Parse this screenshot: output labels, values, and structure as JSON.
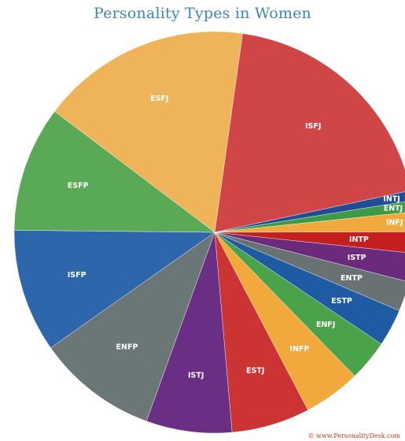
{
  "chart_data": {
    "type": "pie",
    "title": "Personality Types in Women",
    "slices": [
      {
        "label": "ISFJ",
        "value": 19.4,
        "color": "#d04646"
      },
      {
        "label": "INTJ",
        "value": 0.8,
        "color": "#1f4e96"
      },
      {
        "label": "ENTJ",
        "value": 0.9,
        "color": "#3f9a47"
      },
      {
        "label": "INFJ",
        "value": 1.6,
        "color": "#f2a93b"
      },
      {
        "label": "INTP",
        "value": 1.7,
        "color": "#c41e1e"
      },
      {
        "label": "ISTP",
        "value": 2.3,
        "color": "#6b2a7c"
      },
      {
        "label": "ENTP",
        "value": 2.4,
        "color": "#687272"
      },
      {
        "label": "ESTP",
        "value": 3.0,
        "color": "#1f5ba3"
      },
      {
        "label": "ENFJ",
        "value": 3.3,
        "color": "#4aa24a"
      },
      {
        "label": "INFP",
        "value": 4.6,
        "color": "#f0a93a"
      },
      {
        "label": "ESTJ",
        "value": 6.3,
        "color": "#cc3333"
      },
      {
        "label": "ISTJ",
        "value": 6.9,
        "color": "#6a2f84"
      },
      {
        "label": "ENFP",
        "value": 9.7,
        "color": "#6b7677"
      },
      {
        "label": "ISFP",
        "value": 9.9,
        "color": "#2d66aa"
      },
      {
        "label": "ESFP",
        "value": 10.1,
        "color": "#59a957"
      },
      {
        "label": "ESFJ",
        "value": 16.9,
        "color": "#efb45a"
      }
    ]
  },
  "credit": "© www.PersonalityDesk.com"
}
